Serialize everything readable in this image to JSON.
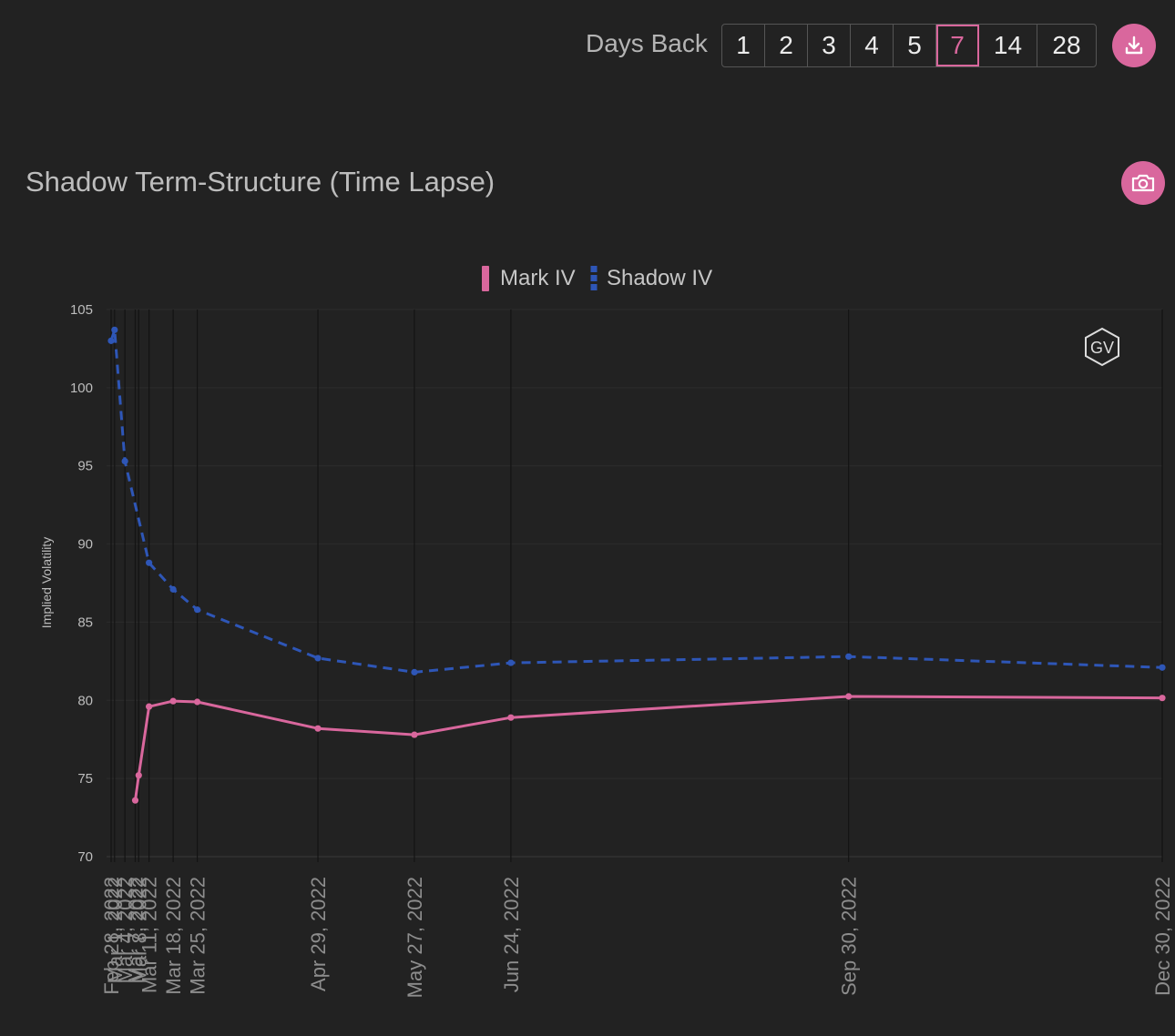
{
  "toolbar": {
    "days_back_label": "Days Back",
    "options": [
      "1",
      "2",
      "3",
      "4",
      "5",
      "7",
      "14",
      "28"
    ],
    "selected": "7",
    "download_icon": "download-icon",
    "camera_icon": "camera-icon"
  },
  "watermark": "GV",
  "colors": {
    "mark": "#d9679d",
    "shadow": "#2e56b7",
    "accent": "#d9679d",
    "background": "#222222"
  },
  "chart_data": {
    "type": "line",
    "title": "Shadow Term-Structure (Time Lapse)",
    "ylabel": "Implied Volatility",
    "xlabel": "",
    "ylim": [
      70,
      105
    ],
    "y_ticks": [
      70,
      75,
      80,
      85,
      90,
      95,
      100,
      105
    ],
    "x_domain_days": [
      0,
      305
    ],
    "x_ticks": [
      {
        "label": "Feb 28, 2022",
        "day": 0
      },
      {
        "label": "Mar 1, 2022",
        "day": 1
      },
      {
        "label": "Mar 4, 2022",
        "day": 4
      },
      {
        "label": "Mar 7, 2022",
        "day": 7
      },
      {
        "label": "Mar 8, 2022",
        "day": 8
      },
      {
        "label": "Mar 11, 2022",
        "day": 11
      },
      {
        "label": "Mar 18, 2022",
        "day": 18
      },
      {
        "label": "Mar 25, 2022",
        "day": 25
      },
      {
        "label": "Apr 29, 2022",
        "day": 60
      },
      {
        "label": "May 27, 2022",
        "day": 88
      },
      {
        "label": "Jun 24, 2022",
        "day": 116
      },
      {
        "label": "Sep 30, 2022",
        "day": 214
      },
      {
        "label": "Dec 30, 2022",
        "day": 305
      }
    ],
    "series": [
      {
        "name": "Mark IV",
        "dashed": false,
        "points": [
          [
            7,
            73.6
          ],
          [
            8,
            75.2
          ],
          [
            11,
            79.6
          ],
          [
            18,
            79.95
          ],
          [
            25,
            79.9
          ],
          [
            60,
            78.2
          ],
          [
            88,
            77.8
          ],
          [
            116,
            78.9
          ],
          [
            214,
            80.25
          ],
          [
            305,
            80.15
          ]
        ]
      },
      {
        "name": "Shadow IV",
        "dashed": true,
        "points": [
          [
            0,
            103.0
          ],
          [
            1,
            103.7
          ],
          [
            4,
            95.3
          ],
          [
            11,
            88.8
          ],
          [
            18,
            87.1
          ],
          [
            25,
            85.8
          ],
          [
            60,
            82.7
          ],
          [
            88,
            81.8
          ],
          [
            116,
            82.4
          ],
          [
            214,
            82.8
          ],
          [
            305,
            82.1
          ]
        ]
      }
    ]
  }
}
